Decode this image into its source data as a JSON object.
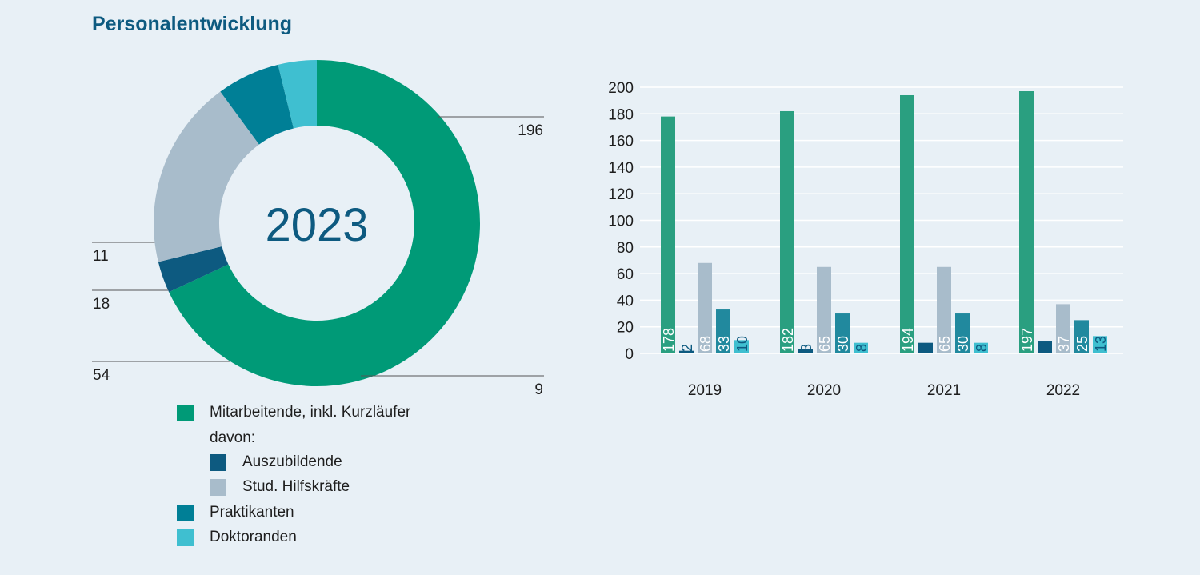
{
  "title": "Personalentwicklung",
  "colors": {
    "mitarbeitende": "#009a77",
    "mitarbeitende_bar": "#2a9f80",
    "auszubildende": "#0d5a80",
    "hilfskraefte": "#a8bccb",
    "praktikanten": "#007f96",
    "praktikanten_bar": "#21899e",
    "doktoranden": "#3fbfd0"
  },
  "legend": {
    "mitarbeitende": "Mitarbeitende, inkl. Kurzläufer",
    "davon": "davon:",
    "auszubildende": "Auszubildende",
    "hilfskraefte": "Stud. Hilfskräfte",
    "praktikanten": "Praktikanten",
    "doktoranden": "Doktoranden"
  },
  "chart_data": [
    {
      "type": "pie",
      "center_label": "2023",
      "slices": [
        {
          "key": "mitarbeitende",
          "value": 196,
          "label": "196"
        },
        {
          "key": "auszubildende",
          "value": 9,
          "label": "9"
        },
        {
          "key": "hilfskraefte",
          "value": 54,
          "label": "54"
        },
        {
          "key": "praktikanten",
          "value": 18,
          "label": "18"
        },
        {
          "key": "doktoranden",
          "value": 11,
          "label": "11"
        }
      ]
    },
    {
      "type": "bar",
      "categories": [
        "2019",
        "2020",
        "2021",
        "2022"
      ],
      "ylim": [
        0,
        200
      ],
      "yticks": [
        0,
        20,
        40,
        60,
        80,
        100,
        120,
        140,
        160,
        180,
        200
      ],
      "grid": true,
      "series": [
        {
          "key": "mitarbeitende",
          "values": [
            178,
            182,
            194,
            197
          ]
        },
        {
          "key": "auszubildende",
          "values": [
            2,
            3,
            8,
            9
          ]
        },
        {
          "key": "hilfskraefte",
          "values": [
            68,
            65,
            65,
            37
          ]
        },
        {
          "key": "praktikanten",
          "values": [
            33,
            30,
            30,
            25
          ]
        },
        {
          "key": "doktoranden",
          "values": [
            10,
            8,
            8,
            13
          ]
        }
      ]
    }
  ]
}
